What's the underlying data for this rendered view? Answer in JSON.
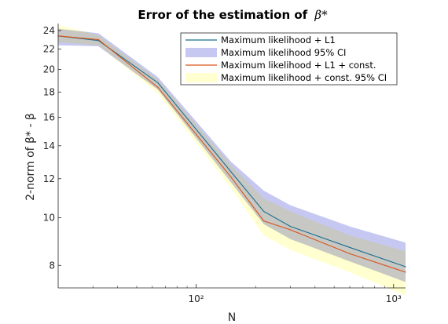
{
  "chart_data": {
    "type": "line",
    "title": "Error of the estimation of",
    "title_symbol": "β*",
    "xlabel": "N",
    "ylabel": "2-norm of β* - β",
    "xscale": "log",
    "yscale": "log",
    "xlim": [
      20,
      1150
    ],
    "ylim": [
      7.2,
      24.8
    ],
    "x_ticks": [
      {
        "value": 100,
        "label": "10²"
      },
      {
        "value": 1000,
        "label": "10³"
      }
    ],
    "y_ticks": [
      8,
      10,
      12,
      14,
      16,
      18,
      20,
      22,
      24
    ],
    "legend_position": "top-right",
    "series": [
      {
        "name": "Maximum likelihood + L1",
        "kind": "line",
        "color": "#1a6e8f",
        "x": [
          20,
          32,
          64,
          150,
          220,
          300,
          600,
          1150
        ],
        "y": [
          23.4,
          22.9,
          18.8,
          12.4,
          10.3,
          9.6,
          8.7,
          7.95
        ]
      },
      {
        "name": "Maximum likelihood 95% CI",
        "kind": "band",
        "color": "#c7c8f2",
        "x": [
          20,
          32,
          64,
          150,
          220,
          300,
          600,
          1150
        ],
        "lower": [
          22.4,
          22.3,
          18.2,
          11.8,
          9.7,
          9.05,
          8.15,
          7.4
        ],
        "upper": [
          24.2,
          23.7,
          19.3,
          13.0,
          11.35,
          10.6,
          9.6,
          8.9
        ]
      },
      {
        "name": "Maximum likelihood + L1 + const.",
        "kind": "line",
        "color": "#d95319",
        "x": [
          20,
          32,
          64,
          150,
          220,
          300,
          600,
          1150
        ],
        "y": [
          23.4,
          23.0,
          18.4,
          12.1,
          9.85,
          9.45,
          8.45,
          7.75
        ]
      },
      {
        "name": "Maximum likelihood + const. 95% CI",
        "kind": "band",
        "color": "#ffffcf",
        "x": [
          20,
          32,
          64,
          150,
          220,
          300,
          600,
          1150
        ],
        "lower": [
          22.7,
          22.4,
          17.9,
          11.5,
          9.2,
          8.6,
          7.75,
          6.95
        ],
        "upper": [
          24.6,
          23.5,
          19.1,
          12.8,
          10.95,
          10.3,
          9.2,
          8.55
        ]
      }
    ]
  }
}
